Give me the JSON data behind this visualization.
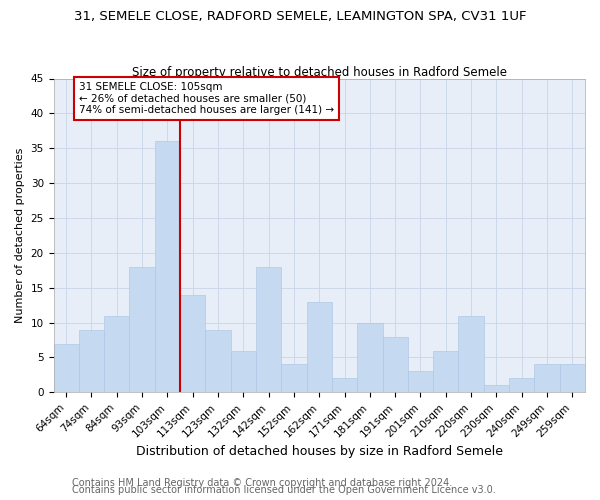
{
  "title1": "31, SEMELE CLOSE, RADFORD SEMELE, LEAMINGTON SPA, CV31 1UF",
  "title2": "Size of property relative to detached houses in Radford Semele",
  "xlabel": "Distribution of detached houses by size in Radford Semele",
  "ylabel": "Number of detached properties",
  "categories": [
    "64sqm",
    "74sqm",
    "84sqm",
    "93sqm",
    "103sqm",
    "113sqm",
    "123sqm",
    "132sqm",
    "142sqm",
    "152sqm",
    "162sqm",
    "171sqm",
    "181sqm",
    "191sqm",
    "201sqm",
    "210sqm",
    "220sqm",
    "230sqm",
    "240sqm",
    "249sqm",
    "259sqm"
  ],
  "values": [
    7,
    9,
    11,
    18,
    36,
    14,
    9,
    6,
    18,
    4,
    13,
    2,
    10,
    8,
    3,
    6,
    11,
    1,
    2,
    4,
    4
  ],
  "bar_color": "#c5d9f0",
  "bar_edge_color": "#aec8e8",
  "subject_line_color": "#cc0000",
  "ylim": [
    0,
    45
  ],
  "yticks": [
    0,
    5,
    10,
    15,
    20,
    25,
    30,
    35,
    40,
    45
  ],
  "annotation_text": "31 SEMELE CLOSE: 105sqm\n← 26% of detached houses are smaller (50)\n74% of semi-detached houses are larger (141) →",
  "annotation_box_color": "#cc0000",
  "footer1": "Contains HM Land Registry data © Crown copyright and database right 2024.",
  "footer2": "Contains public sector information licensed under the Open Government Licence v3.0.",
  "bg_color": "#ffffff",
  "plot_bg_color": "#e8eef8",
  "grid_color": "#c8d4e8",
  "title1_fontsize": 9.5,
  "title2_fontsize": 8.5,
  "xlabel_fontsize": 9,
  "ylabel_fontsize": 8,
  "tick_fontsize": 7.5,
  "footer_fontsize": 7
}
